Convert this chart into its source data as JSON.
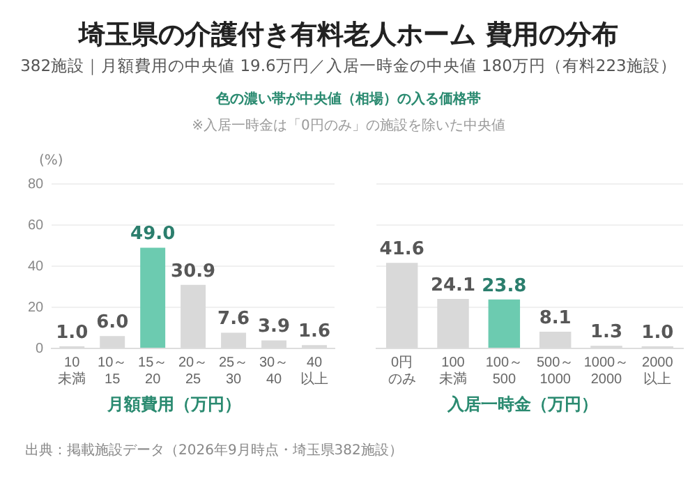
{
  "chart_data": [
    {
      "type": "bar",
      "title": "埼玉県の介護付き有料老人ホーム 費用の分布",
      "subtitle": "382施設｜月額費用の中央値 19.6万円／入居一時金の中央値 180万円（有料223施設）",
      "annotations": [
        "色の濃い帯が中央値（相場）の入る価格帯",
        "※入居一時金は「0円のみ」の施設を除いた中央値",
        "出典：掲載施設データ（2026年9月時点・埼玉県382施設）"
      ],
      "ylabel": "(%)",
      "xlabel": "月額費用（万円）",
      "categories": [
        "10未満",
        "10～15",
        "15～20",
        "20～25",
        "25～30",
        "30～40",
        "40以上"
      ],
      "values": [
        1,
        6,
        49,
        30.9,
        7.6,
        3.9,
        1.6
      ],
      "value_labels": [
        "1.0",
        "6.0",
        "49.0",
        "30.9",
        "7.6",
        "3.9",
        "1.6"
      ],
      "colors": [
        "#d9d9d9",
        "#d9d9d9",
        "#6ccbb0",
        "#d9d9d9",
        "#d9d9d9",
        "#d9d9d9",
        "#d9d9d9"
      ],
      "ylim": [
        0,
        80
      ],
      "yticks": [
        0,
        20,
        40,
        60,
        80
      ],
      "grid": "y"
    },
    {
      "type": "bar",
      "xlabel": "入居一時金（万円）",
      "categories": [
        "0円のみ",
        "100未満",
        "100～500",
        "500～1000",
        "1000～2000",
        "2000以上"
      ],
      "values": [
        41.6,
        24.1,
        23.8,
        8.1,
        1.3,
        1
      ],
      "value_labels": [
        "41.6",
        "24.1",
        "23.8",
        "8.1",
        "1.3",
        "1.0"
      ],
      "colors": [
        "#d9d9d9",
        "#d9d9d9",
        "#6ccbb0",
        "#d9d9d9",
        "#d9d9d9",
        "#d9d9d9"
      ],
      "ylim": [
        0,
        80
      ],
      "yticks": [
        0,
        20,
        40,
        60,
        80
      ],
      "grid": "y",
      "tick_labels": "x"
    }
  ]
}
